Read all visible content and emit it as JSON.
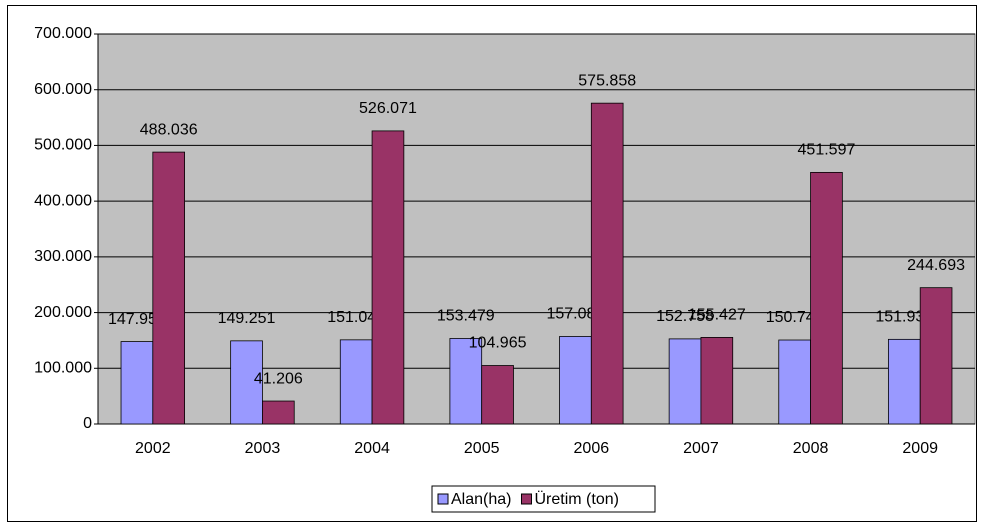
{
  "chart_data": {
    "type": "bar",
    "categories": [
      "2002",
      "2003",
      "2004",
      "2005",
      "2006",
      "2007",
      "2008",
      "2009"
    ],
    "series": [
      {
        "name": "Alan(ha)",
        "color": "#9999ff",
        "values": [
          147958,
          149251,
          151041,
          153479,
          157082,
          152758,
          150741,
          151936
        ],
        "value_labels": [
          "147.958",
          "149.251",
          "151.041",
          "153.479",
          "157.082",
          "152.758",
          "150.741",
          "151.936"
        ]
      },
      {
        "name": "Üretim (ton)",
        "color": "#993366",
        "values": [
          488036,
          41206,
          526071,
          104965,
          575858,
          155427,
          451597,
          244693
        ],
        "value_labels": [
          "488.036",
          "41.206",
          "526.071",
          "104.965",
          "575.858",
          "155.427",
          "451.597",
          "244.693"
        ]
      }
    ],
    "ylim": [
      0,
      700000
    ],
    "yticks": [
      0,
      {
        "value": 100000,
        "label": "100.000"
      },
      {
        "value": 200000,
        "label": "200.000"
      },
      {
        "value": 300000,
        "label": "300.000"
      },
      {
        "value": 400000,
        "label": "400.000"
      },
      {
        "value": 500000,
        "label": "500.000"
      },
      {
        "value": 600000,
        "label": "600.000"
      },
      {
        "value": 700000,
        "label": "700.000"
      }
    ],
    "grid": true,
    "legend": "bottom"
  }
}
